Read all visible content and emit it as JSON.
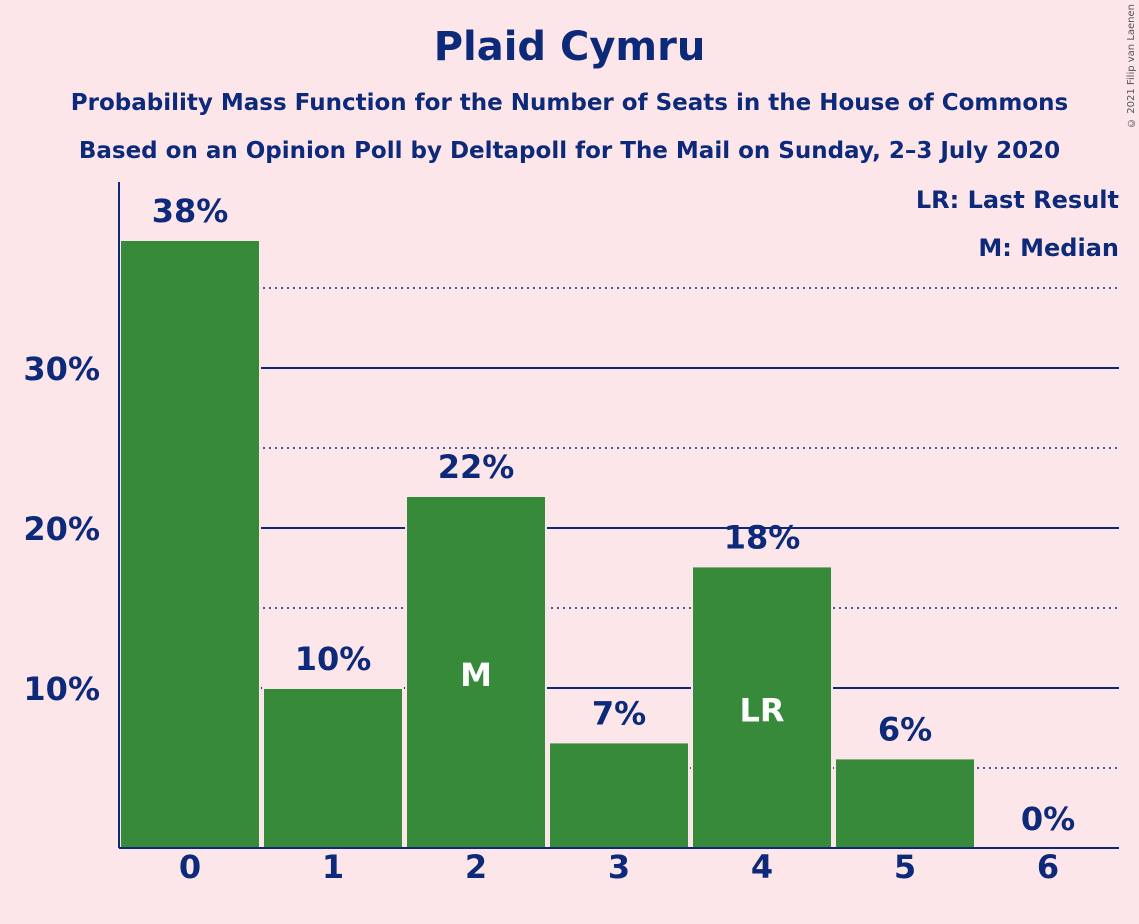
{
  "title": "Plaid Cymru",
  "subtitle1": "Probability Mass Function for the Number of Seats in the House of Commons",
  "subtitle2": "Based on an Opinion Poll by Deltapoll for The Mail on Sunday, 2–3 July 2020",
  "copyright": "© 2021 Filip van Laenen",
  "legend": {
    "last_result": "LR: Last Result",
    "median": "M: Median"
  },
  "colors": {
    "background": "#fde6ea",
    "bar": "#368a3a",
    "text": "#0d2a7a"
  },
  "chart_data": {
    "type": "bar",
    "categories": [
      "0",
      "1",
      "2",
      "3",
      "4",
      "5",
      "6"
    ],
    "values": [
      38,
      10,
      22,
      6.6,
      17.6,
      5.6,
      0
    ],
    "value_labels": [
      "38%",
      "10%",
      "22%",
      "7%",
      "18%",
      "6%",
      "0%"
    ],
    "bar_markers": [
      "",
      "",
      "M",
      "",
      "LR",
      "",
      ""
    ],
    "yticks": [
      10,
      20,
      30
    ],
    "ytick_labels": [
      "10%",
      "20%",
      "30%"
    ],
    "dotted_gridlines": [
      5,
      15,
      25,
      35
    ],
    "ylim": [
      0,
      41.5
    ],
    "grid": true,
    "legend_placement": "top-right"
  }
}
